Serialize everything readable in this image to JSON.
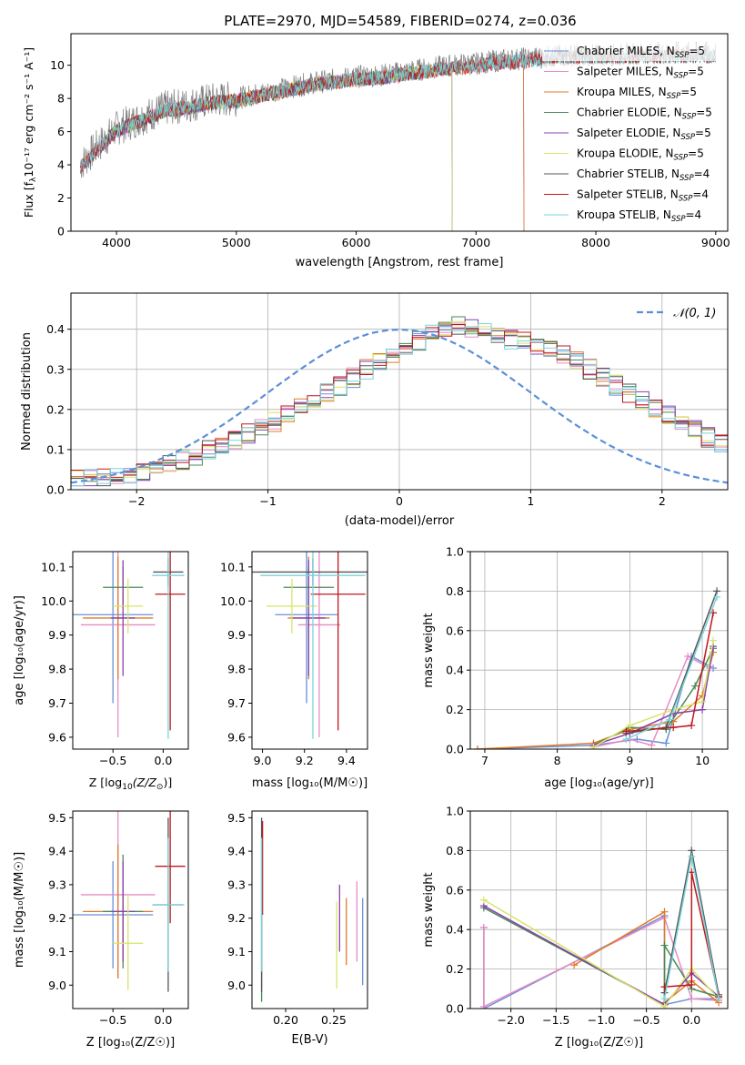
{
  "figure": {
    "title": "PLATE=2970, MJD=54589, FIBERID=0274, z=0.036"
  },
  "colors": {
    "Chabrier MILES": "#6a8fd8",
    "Salpeter MILES": "#e88bc4",
    "Kroupa MILES": "#e07b2a",
    "Chabrier ELODIE": "#4a8a55",
    "Salpeter ELODIE": "#8a3fb0",
    "Kroupa ELODIE": "#d8e46a",
    "Chabrier STELIB": "#555555",
    "Salpeter STELIB": "#c0171c",
    "Kroupa STELIB": "#79d5dc",
    "grid": "#b0b0b0",
    "normal_curve": "#5b8fd9"
  },
  "chart_data": [
    {
      "id": "spectrum",
      "type": "line",
      "title": "PLATE=2970, MJD=54589, FIBERID=0274, z=0.036",
      "xlabel": "wavelength [Angstrom, rest frame]",
      "ylabel_main": "Flux [f",
      "ylabel_sub": "λ",
      "ylabel_tail": "10⁻¹⁷ erg cm⁻² s⁻¹ A⁻¹]",
      "xlim": [
        3620,
        9100
      ],
      "ylim": [
        0,
        11.9
      ],
      "xticks": [
        4000,
        5000,
        6000,
        7000,
        8000,
        9000
      ],
      "yticks": [
        0,
        2,
        4,
        6,
        8,
        10
      ],
      "legend_position": "upper right",
      "legend": [
        {
          "pre": "Chabrier MILES, N",
          "sub": "SSP",
          "post": "=5"
        },
        {
          "pre": "Salpeter MILES, N",
          "sub": "SSP",
          "post": "=5"
        },
        {
          "pre": "Kroupa MILES, N",
          "sub": "SSP",
          "post": "=5"
        },
        {
          "pre": "Chabrier ELODIE, N",
          "sub": "SSP",
          "post": "=5"
        },
        {
          "pre": "Salpeter ELODIE, N",
          "sub": "SSP",
          "post": "=5"
        },
        {
          "pre": "Kroupa ELODIE, N",
          "sub": "SSP",
          "post": "=5"
        },
        {
          "pre": "Chabrier STELIB, N",
          "sub": "SSP",
          "post": "=4"
        },
        {
          "pre": "Salpeter STELIB, N",
          "sub": "SSP",
          "post": "=4"
        },
        {
          "pre": "Kroupa STELIB, N",
          "sub": "SSP",
          "post": "=4"
        }
      ],
      "data_curve": {
        "x": [
          3700,
          3800,
          3900,
          4000,
          4200,
          4400,
          4600,
          4800,
          5000,
          5200,
          5400,
          5600,
          5800,
          6000,
          6200,
          6400,
          6600,
          6800,
          7000,
          7200,
          7400,
          7600,
          7800,
          8000,
          8200,
          8400,
          8600,
          8800,
          9000
        ],
        "y": [
          4.0,
          4.8,
          5.5,
          6.2,
          6.8,
          7.4,
          7.6,
          7.9,
          8.0,
          8.3,
          8.6,
          8.9,
          9.1,
          9.3,
          9.4,
          9.6,
          9.8,
          10.0,
          10.1,
          10.3,
          10.4,
          10.5,
          10.6,
          10.6,
          10.6,
          10.7,
          10.7,
          10.7,
          10.7
        ]
      },
      "model_ends": {
        "Chabrier MILES": 7400,
        "Salpeter MILES": 7400,
        "Kroupa MILES": 7400,
        "Chabrier ELODIE": 6800,
        "Salpeter ELODIE": 6800,
        "Kroupa ELODIE": 6800,
        "Chabrier STELIB": 9000,
        "Salpeter STELIB": 9000,
        "Kroupa STELIB": 9000
      },
      "model_starts": {
        "Chabrier ELODIE": 3900,
        "Salpeter ELODIE": 3900,
        "Kroupa ELODIE": 3900,
        "Kroupa STELIB": 3700,
        "Salpeter STELIB": 3700,
        "Chabrier STELIB": 3700,
        "Chabrier MILES": 3700,
        "Salpeter MILES": 3700,
        "Kroupa MILES": 3700
      }
    },
    {
      "id": "residuals",
      "type": "histogram",
      "xlabel": "(data-model)/error",
      "ylabel": "Normed distribution",
      "xlim": [
        -2.5,
        2.5
      ],
      "ylim": [
        0,
        0.49
      ],
      "xticks": [
        -2,
        -1,
        0,
        1,
        2
      ],
      "yticks": [
        0.0,
        0.1,
        0.2,
        0.3,
        0.4
      ],
      "grid": true,
      "legend_position": "upper right",
      "legend": [
        {
          "label": "𝒩(0, 1)"
        }
      ],
      "bin_width": 0.1,
      "bin_start": -2.5,
      "base_counts": [
        0.025,
        0.028,
        0.032,
        0.035,
        0.04,
        0.046,
        0.055,
        0.065,
        0.075,
        0.085,
        0.1,
        0.11,
        0.125,
        0.14,
        0.155,
        0.17,
        0.19,
        0.21,
        0.225,
        0.245,
        0.26,
        0.28,
        0.3,
        0.32,
        0.34,
        0.355,
        0.37,
        0.385,
        0.4,
        0.41,
        0.4,
        0.39,
        0.38,
        0.375,
        0.37,
        0.36,
        0.35,
        0.335,
        0.32,
        0.3,
        0.28,
        0.26,
        0.24,
        0.22,
        0.2,
        0.185,
        0.17,
        0.15,
        0.13,
        0.115,
        0.1
      ]
    },
    {
      "id": "age_vs_Z",
      "type": "errorbar",
      "xlabel_pre": "Z [log",
      "xlabel_sub": "10",
      "xlabel_post": "(Z/Z",
      "xlabel_tail": ")]",
      "ylabel": "age  [log₁₀(age/yr)]",
      "xlim": [
        -0.9,
        0.25
      ],
      "ylim": [
        9.565,
        10.145
      ],
      "xticks": [
        -0.5,
        0.0
      ],
      "yticks": [
        9.6,
        9.7,
        9.8,
        9.9,
        10.0,
        10.1
      ],
      "points": [
        {
          "model": "Chabrier MILES",
          "x": -0.5,
          "y": 9.96,
          "xerr": 0.4,
          "yerr": 0.26
        },
        {
          "model": "Salpeter MILES",
          "x": -0.45,
          "y": 9.93,
          "xerr": 0.37,
          "yerr": 0.33
        },
        {
          "model": "Kroupa MILES",
          "x": -0.45,
          "y": 9.95,
          "xerr": 0.35,
          "yerr": 0.18
        },
        {
          "model": "Chabrier ELODIE",
          "x": -0.4,
          "y": 10.04,
          "xerr": 0.2,
          "yerr": 0.06
        },
        {
          "model": "Salpeter ELODIE",
          "x": -0.4,
          "y": 9.95,
          "xerr": 0.12,
          "yerr": 0.17
        },
        {
          "model": "Kroupa ELODIE",
          "x": -0.35,
          "y": 9.985,
          "xerr": 0.15,
          "yerr": 0.08
        },
        {
          "model": "Chabrier STELIB",
          "x": 0.05,
          "y": 10.085,
          "xerr": 0.15,
          "yerr": 0.04
        },
        {
          "model": "Salpeter STELIB",
          "x": 0.07,
          "y": 10.02,
          "xerr": 0.15,
          "yerr": 0.4
        },
        {
          "model": "Kroupa STELIB",
          "x": 0.05,
          "y": 10.075,
          "xerr": 0.16,
          "yerr": 0.48
        }
      ]
    },
    {
      "id": "age_vs_mass",
      "type": "errorbar",
      "xlabel": "mass [log₁₀(M/M☉)]",
      "xlim": [
        8.95,
        9.5
      ],
      "ylim": [
        9.565,
        10.145
      ],
      "xticks": [
        9.0,
        9.2,
        9.4
      ],
      "yticks": [
        9.6,
        9.7,
        9.8,
        9.9,
        10.0,
        10.1
      ],
      "points": [
        {
          "model": "Chabrier MILES",
          "x": 9.21,
          "y": 9.96,
          "xerr": 0.15,
          "yerr": 0.26
        },
        {
          "model": "Salpeter MILES",
          "x": 9.27,
          "y": 9.93,
          "xerr": 0.1,
          "yerr": 0.33
        },
        {
          "model": "Kroupa MILES",
          "x": 9.22,
          "y": 9.95,
          "xerr": 0.1,
          "yerr": 0.18
        },
        {
          "model": "Chabrier ELODIE",
          "x": 9.22,
          "y": 10.04,
          "xerr": 0.12,
          "yerr": 0.06
        },
        {
          "model": "Salpeter ELODIE",
          "x": 9.22,
          "y": 9.95,
          "xerr": 0.08,
          "yerr": 0.17
        },
        {
          "model": "Kroupa ELODIE",
          "x": 9.14,
          "y": 9.985,
          "xerr": 0.12,
          "yerr": 0.08
        },
        {
          "model": "Chabrier STELIB",
          "x": 9.24,
          "y": 10.085,
          "xerr": 0.3,
          "yerr": 0.04
        },
        {
          "model": "Salpeter STELIB",
          "x": 9.36,
          "y": 10.02,
          "xerr": 0.13,
          "yerr": 0.4
        },
        {
          "model": "Kroupa STELIB",
          "x": 9.24,
          "y": 10.075,
          "xerr": 0.25,
          "yerr": 0.48
        }
      ]
    },
    {
      "id": "massweight_vs_age",
      "type": "line",
      "xlabel": "age  [log₁₀(age/yr)]",
      "ylabel": "mass weight",
      "xlim": [
        6.8,
        10.35
      ],
      "ylim": [
        0,
        1.0
      ],
      "xticks": [
        7,
        8,
        9,
        10
      ],
      "yticks": [
        0.0,
        0.2,
        0.4,
        0.6,
        0.8,
        1.0
      ],
      "grid": true,
      "series": [
        {
          "model": "Chabrier MILES",
          "x": [
            6.9,
            8.5,
            9.1,
            9.5,
            9.85,
            10.15
          ],
          "y": [
            0.0,
            0.02,
            0.05,
            0.03,
            0.47,
            0.41
          ]
        },
        {
          "model": "Salpeter MILES",
          "x": [
            8.5,
            9.0,
            9.3,
            9.8,
            10.1
          ],
          "y": [
            0.01,
            0.05,
            0.02,
            0.47,
            0.41
          ]
        },
        {
          "model": "Kroupa MILES",
          "x": [
            6.9,
            8.5,
            9.0,
            9.6,
            10.0,
            10.15
          ],
          "y": [
            0.0,
            0.03,
            0.1,
            0.14,
            0.27,
            0.49
          ]
        },
        {
          "model": "Chabrier ELODIE",
          "x": [
            8.5,
            9.0,
            9.5,
            9.9,
            10.15
          ],
          "y": [
            0.02,
            0.11,
            0.1,
            0.32,
            0.51
          ]
        },
        {
          "model": "Salpeter ELODIE",
          "x": [
            8.5,
            9.0,
            9.6,
            10.0,
            10.15
          ],
          "y": [
            0.02,
            0.08,
            0.18,
            0.2,
            0.52
          ]
        },
        {
          "model": "Kroupa ELODIE",
          "x": [
            8.5,
            9.0,
            9.6,
            10.0,
            10.15
          ],
          "y": [
            0.01,
            0.12,
            0.2,
            0.24,
            0.55
          ]
        },
        {
          "model": "Chabrier STELIB",
          "x": [
            8.95,
            9.5,
            10.2
          ],
          "y": [
            0.08,
            0.11,
            0.8
          ]
        },
        {
          "model": "Salpeter STELIB",
          "x": [
            8.95,
            9.6,
            9.85,
            10.15
          ],
          "y": [
            0.09,
            0.11,
            0.12,
            0.69
          ]
        },
        {
          "model": "Kroupa STELIB",
          "x": [
            8.95,
            9.55,
            10.2
          ],
          "y": [
            0.05,
            0.15,
            0.77
          ]
        }
      ]
    },
    {
      "id": "mass_vs_Z",
      "type": "errorbar",
      "xlabel": "Z [log₁₀(Z/Z☉)]",
      "ylabel": "mass [log₁₀(M/M☉)]",
      "xlim": [
        -0.9,
        0.25
      ],
      "ylim": [
        8.93,
        9.52
      ],
      "xticks": [
        -0.5,
        0.0
      ],
      "yticks": [
        9.0,
        9.1,
        9.2,
        9.3,
        9.4,
        9.5
      ],
      "points": [
        {
          "model": "Chabrier MILES",
          "x": -0.5,
          "y": 9.21,
          "xerr": 0.4,
          "yerr": 0.16
        },
        {
          "model": "Salpeter MILES",
          "x": -0.45,
          "y": 9.27,
          "xerr": 0.37,
          "yerr": 0.25
        },
        {
          "model": "Kroupa MILES",
          "x": -0.45,
          "y": 9.22,
          "xerr": 0.35,
          "yerr": 0.2
        },
        {
          "model": "Chabrier ELODIE",
          "x": -0.4,
          "y": 9.22,
          "xerr": 0.2,
          "yerr": 0.17
        },
        {
          "model": "Salpeter ELODIE",
          "x": -0.4,
          "y": 9.22,
          "xerr": 0.12,
          "yerr": 0.15
        },
        {
          "model": "Kroupa ELODIE",
          "x": -0.35,
          "y": 9.125,
          "xerr": 0.15,
          "yerr": 0.14
        },
        {
          "model": "Chabrier STELIB",
          "x": 0.05,
          "y": 9.24,
          "xerr": 0.15,
          "yerr": 0.26
        },
        {
          "model": "Salpeter STELIB",
          "x": 0.07,
          "y": 9.355,
          "xerr": 0.15,
          "yerr": 0.17
        },
        {
          "model": "Kroupa STELIB",
          "x": 0.05,
          "y": 9.24,
          "xerr": 0.16,
          "yerr": 0.2
        }
      ]
    },
    {
      "id": "mass_vs_EBV",
      "type": "errorbar",
      "xlabel": "E(B-V)",
      "xlim": [
        0.165,
        0.285
      ],
      "ylim": [
        8.93,
        9.52
      ],
      "xticks": [
        0.2,
        0.25
      ],
      "yticks": [
        9.0,
        9.1,
        9.2,
        9.3,
        9.4,
        9.5
      ],
      "points": [
        {
          "model": "Chabrier MILES",
          "x": 0.28,
          "y": 9.13,
          "yerr": 0.13
        },
        {
          "model": "Salpeter MILES",
          "x": 0.274,
          "y": 9.19,
          "yerr": 0.12
        },
        {
          "model": "Kroupa MILES",
          "x": 0.263,
          "y": 9.16,
          "yerr": 0.1
        },
        {
          "model": "Chabrier ELODIE",
          "x": 0.175,
          "y": 9.2,
          "yerr": 0.25
        },
        {
          "model": "Salpeter ELODIE",
          "x": 0.256,
          "y": 9.2,
          "yerr": 0.1
        },
        {
          "model": "Kroupa ELODIE",
          "x": 0.253,
          "y": 9.12,
          "yerr": 0.13
        },
        {
          "model": "Chabrier STELIB",
          "x": 0.175,
          "y": 9.24,
          "yerr": 0.26
        },
        {
          "model": "Salpeter STELIB",
          "x": 0.176,
          "y": 9.35,
          "yerr": 0.14
        },
        {
          "model": "Kroupa STELIB",
          "x": 0.175,
          "y": 9.24,
          "yerr": 0.2
        }
      ]
    },
    {
      "id": "massweight_vs_Z",
      "type": "line",
      "xlabel": "Z [log₁₀(Z/Z☉)]",
      "ylabel": "mass weight",
      "xlim": [
        -2.45,
        0.4
      ],
      "ylim": [
        0,
        1.0
      ],
      "xticks": [
        -2.0,
        -1.5,
        -1.0,
        -0.5,
        0.0
      ],
      "yticks": [
        0.0,
        0.2,
        0.4,
        0.6,
        0.8,
        1.0
      ],
      "grid": true,
      "series": [
        {
          "model": "Chabrier MILES",
          "x": [
            -2.3,
            -2.3,
            -0.3,
            -0.3,
            0.0,
            0.3
          ],
          "y": [
            0.41,
            0.0,
            0.47,
            0.02,
            0.05,
            0.05
          ]
        },
        {
          "model": "Salpeter MILES",
          "x": [
            -2.3,
            -2.3,
            -0.3,
            0.0,
            0.3
          ],
          "y": [
            0.41,
            0.01,
            0.46,
            0.05,
            0.04
          ]
        },
        {
          "model": "Kroupa MILES",
          "x": [
            -1.3,
            -0.3,
            -0.3,
            0.0,
            0.3
          ],
          "y": [
            0.22,
            0.49,
            0.03,
            0.14,
            0.03
          ]
        },
        {
          "model": "Chabrier ELODIE",
          "x": [
            -2.3,
            -0.3,
            -0.3,
            0.0,
            0.3
          ],
          "y": [
            0.51,
            0.02,
            0.32,
            0.1,
            0.06
          ]
        },
        {
          "model": "Salpeter ELODIE",
          "x": [
            -2.3,
            -0.3,
            0.0,
            0.3
          ],
          "y": [
            0.52,
            0.02,
            0.18,
            0.06
          ]
        },
        {
          "model": "Kroupa ELODIE",
          "x": [
            -2.3,
            -0.3,
            0.0,
            0.3
          ],
          "y": [
            0.55,
            0.01,
            0.2,
            0.05
          ]
        },
        {
          "model": "Chabrier STELIB",
          "x": [
            -0.3,
            0.0,
            0.3
          ],
          "y": [
            0.08,
            0.8,
            0.07
          ]
        },
        {
          "model": "Salpeter STELIB",
          "x": [
            -0.3,
            0.0,
            0.0,
            0.3
          ],
          "y": [
            0.11,
            0.12,
            0.69,
            0.06
          ]
        },
        {
          "model": "Kroupa STELIB",
          "x": [
            -0.3,
            0.0,
            0.3
          ],
          "y": [
            0.05,
            0.77,
            0.05
          ]
        }
      ]
    }
  ]
}
